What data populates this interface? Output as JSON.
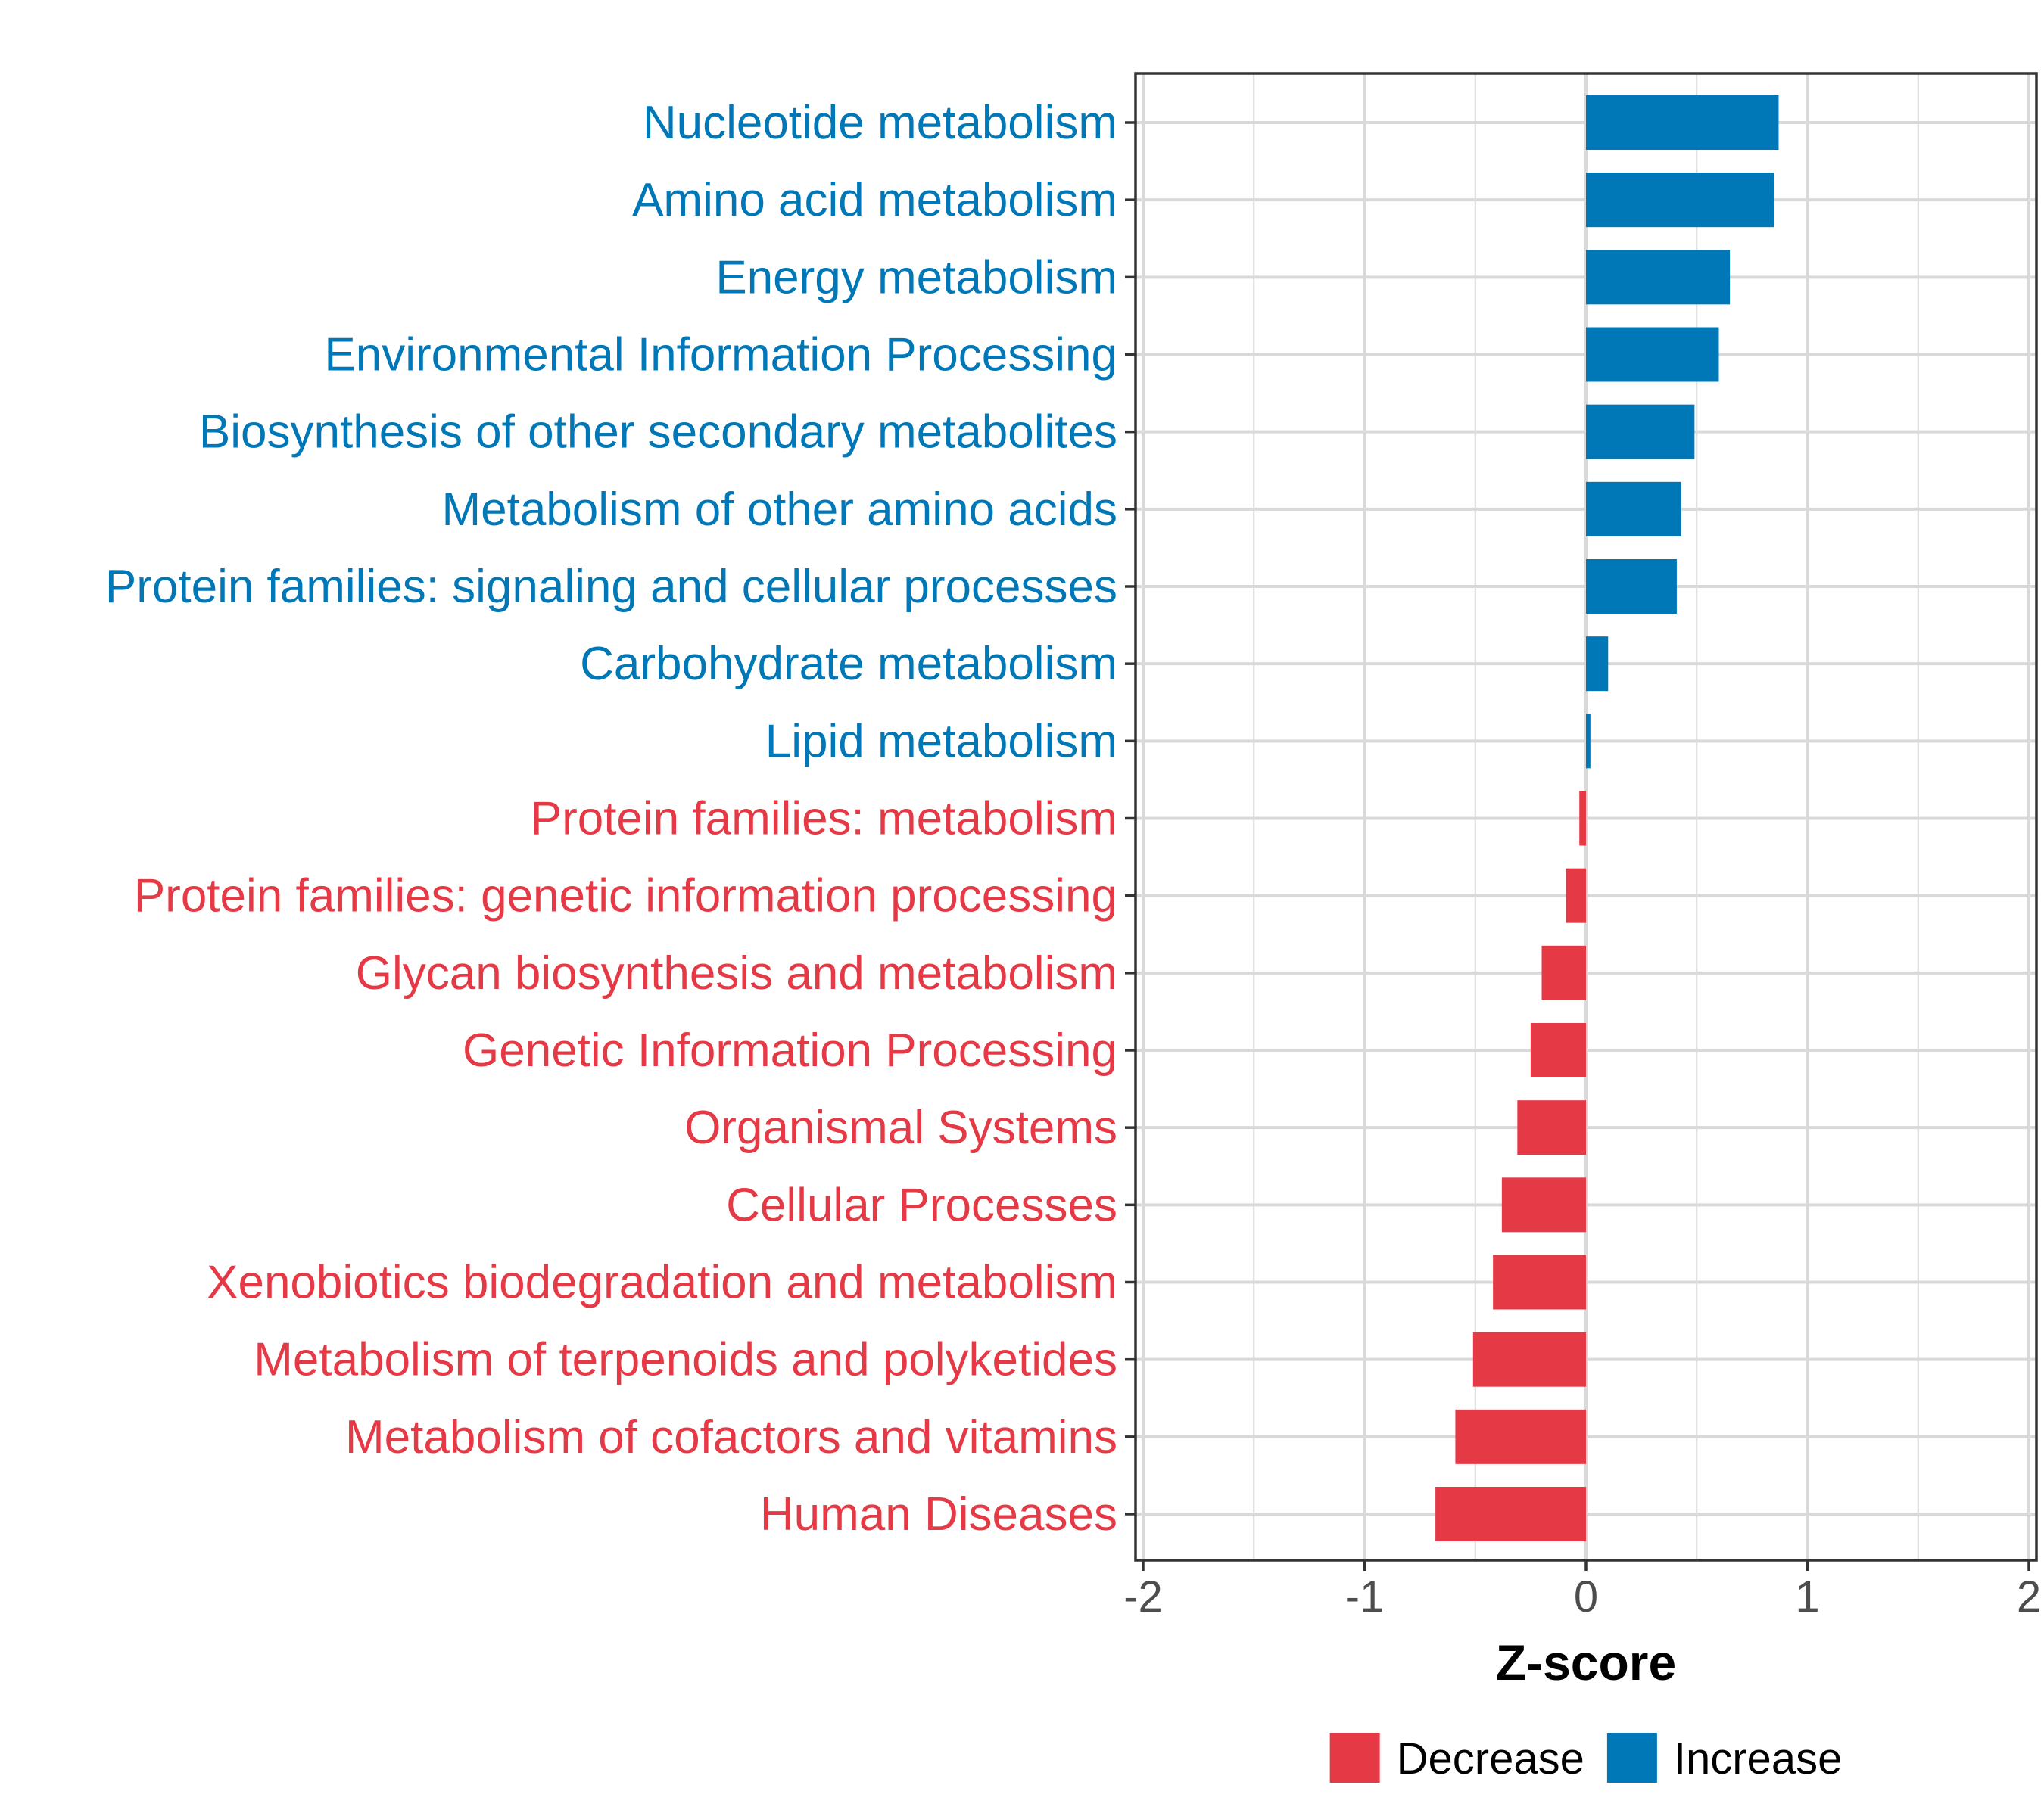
{
  "chart_data": {
    "type": "bar",
    "orientation": "horizontal",
    "xlabel": "Z-score",
    "ylabel": "",
    "xlim": [
      -2,
      2
    ],
    "x_ticks": [
      "-2",
      "-1",
      "0",
      "1",
      "2"
    ],
    "grid": true,
    "legend_position": "bottom",
    "legend": [
      {
        "name": "Decrease",
        "color": "#E63946"
      },
      {
        "name": "Increase",
        "color": "#0077B6"
      }
    ],
    "categories": [
      "Nucleotide metabolism",
      "Amino acid metabolism",
      "Energy metabolism",
      "Environmental Information Processing",
      "Biosynthesis of other secondary metabolites",
      "Metabolism of other amino acids",
      "Protein families: signaling and cellular processes",
      "Carbohydrate metabolism",
      "Lipid metabolism",
      "Protein families: metabolism",
      "Protein families: genetic information processing",
      "Glycan biosynthesis and metabolism",
      "Genetic Information Processing",
      "Organismal Systems",
      "Cellular Processes",
      "Xenobiotics biodegradation and metabolism",
      "Metabolism of terpenoids and polyketides",
      "Metabolism of cofactors and vitamins",
      "Human Diseases"
    ],
    "values": [
      0.87,
      0.85,
      0.65,
      0.6,
      0.49,
      0.43,
      0.41,
      0.1,
      0.02,
      -0.03,
      -0.09,
      -0.2,
      -0.25,
      -0.31,
      -0.38,
      -0.42,
      -0.51,
      -0.59,
      -0.68
    ],
    "direction": [
      "Increase",
      "Increase",
      "Increase",
      "Increase",
      "Increase",
      "Increase",
      "Increase",
      "Increase",
      "Increase",
      "Decrease",
      "Decrease",
      "Decrease",
      "Decrease",
      "Decrease",
      "Decrease",
      "Decrease",
      "Decrease",
      "Decrease",
      "Decrease"
    ]
  }
}
